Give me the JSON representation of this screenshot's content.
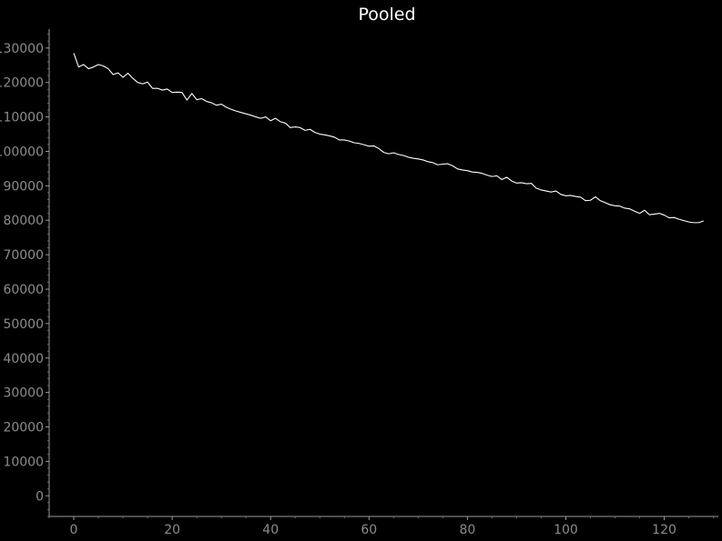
{
  "chart_data": {
    "type": "line",
    "title": "Pooled",
    "xlabel": "",
    "ylabel": "",
    "xlim": [
      -5,
      131
    ],
    "ylim": [
      -6000,
      135500
    ],
    "x_ticks": [
      0,
      20,
      40,
      60,
      80,
      100,
      120
    ],
    "y_ticks": [
      0,
      10000,
      20000,
      30000,
      40000,
      50000,
      60000,
      70000,
      80000,
      90000,
      100000,
      110000,
      120000,
      130000
    ],
    "grid": false,
    "legend": "none",
    "colors": {
      "background": "#000000",
      "series": "#ffffff",
      "axis": "#9a9a9a",
      "tick_label": "#8c8c8c",
      "title": "#ffffff"
    },
    "series": [
      {
        "values": [
          128500,
          124500,
          125200,
          124000,
          124500,
          125200,
          124800,
          124000,
          122300,
          122800,
          121500,
          122700,
          121200,
          120000,
          119600,
          120100,
          118300,
          118300,
          117800,
          118100,
          117100,
          117200,
          117100,
          114900,
          116800,
          115000,
          115300,
          114500,
          114100,
          113400,
          113700,
          112800,
          112200,
          111700,
          111300,
          110900,
          110500,
          110000,
          109600,
          110000,
          108900,
          109600,
          108600,
          108200,
          106900,
          107100,
          106900,
          106100,
          106400,
          105500,
          105000,
          104800,
          104500,
          104100,
          103300,
          103300,
          103000,
          102500,
          102300,
          101900,
          101500,
          101600,
          100800,
          99700,
          99300,
          99600,
          99100,
          98800,
          98300,
          98000,
          97800,
          97500,
          97000,
          96700,
          96100,
          96300,
          96400,
          95800,
          94900,
          94600,
          94400,
          94000,
          93900,
          93600,
          93100,
          92700,
          92900,
          91800,
          92500,
          91400,
          90800,
          90900,
          90600,
          90700,
          89300,
          88800,
          88500,
          88200,
          88500,
          87500,
          87100,
          87200,
          86900,
          86700,
          85700,
          85800,
          86800,
          85700,
          85100,
          84500,
          84200,
          84100,
          83500,
          83300,
          82600,
          82000,
          82900,
          81600,
          81800,
          82000,
          81500,
          80700,
          80800,
          80300,
          79900,
          79500,
          79300,
          79300,
          79800
        ]
      }
    ]
  }
}
